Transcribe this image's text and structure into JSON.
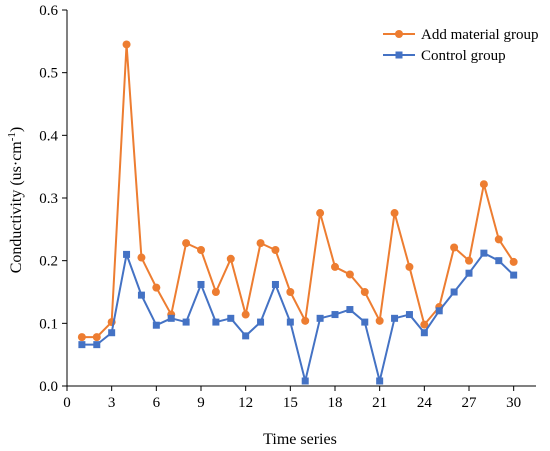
{
  "chart_data": {
    "type": "line",
    "xlabel": "Time series",
    "ylabel": "Conductivity (us·cm",
    "ylabel_sup": "-1",
    "ylabel_close": ")",
    "xlim": [
      0,
      31.5
    ],
    "ylim": [
      0,
      0.6
    ],
    "xticks": [
      0,
      3,
      6,
      9,
      12,
      15,
      18,
      21,
      24,
      27,
      30
    ],
    "yticks": [
      0.0,
      0.1,
      0.2,
      0.3,
      0.4,
      0.5,
      0.6
    ],
    "ytick_labels": [
      "0.0",
      "0.1",
      "0.2",
      "0.3",
      "0.4",
      "0.5",
      "0.6"
    ],
    "grid": false,
    "legend_position": "top-right",
    "x": [
      1,
      2,
      3,
      4,
      5,
      6,
      7,
      8,
      9,
      10,
      11,
      12,
      13,
      14,
      15,
      16,
      17,
      18,
      19,
      20,
      21,
      22,
      23,
      24,
      25,
      26,
      27,
      28,
      29,
      30
    ],
    "series": [
      {
        "name": "Add material group",
        "color": "#ED7D31",
        "marker": "circle",
        "values": [
          0.078,
          0.078,
          0.102,
          0.545,
          0.205,
          0.157,
          0.114,
          0.228,
          0.217,
          0.15,
          0.203,
          0.114,
          0.228,
          0.217,
          0.15,
          0.104,
          0.276,
          0.19,
          0.178,
          0.15,
          0.104,
          0.276,
          0.19,
          0.098,
          0.126,
          0.221,
          0.2,
          0.322,
          0.234,
          0.198
        ]
      },
      {
        "name": "Control group",
        "color": "#4472C4",
        "marker": "square",
        "values": [
          0.066,
          0.066,
          0.085,
          0.21,
          0.145,
          0.097,
          0.108,
          0.102,
          0.162,
          0.102,
          0.108,
          0.08,
          0.102,
          0.162,
          0.102,
          0.008,
          0.108,
          0.114,
          0.122,
          0.102,
          0.008,
          0.108,
          0.114,
          0.085,
          0.12,
          0.15,
          0.18,
          0.212,
          0.2,
          0.177
        ]
      }
    ]
  }
}
